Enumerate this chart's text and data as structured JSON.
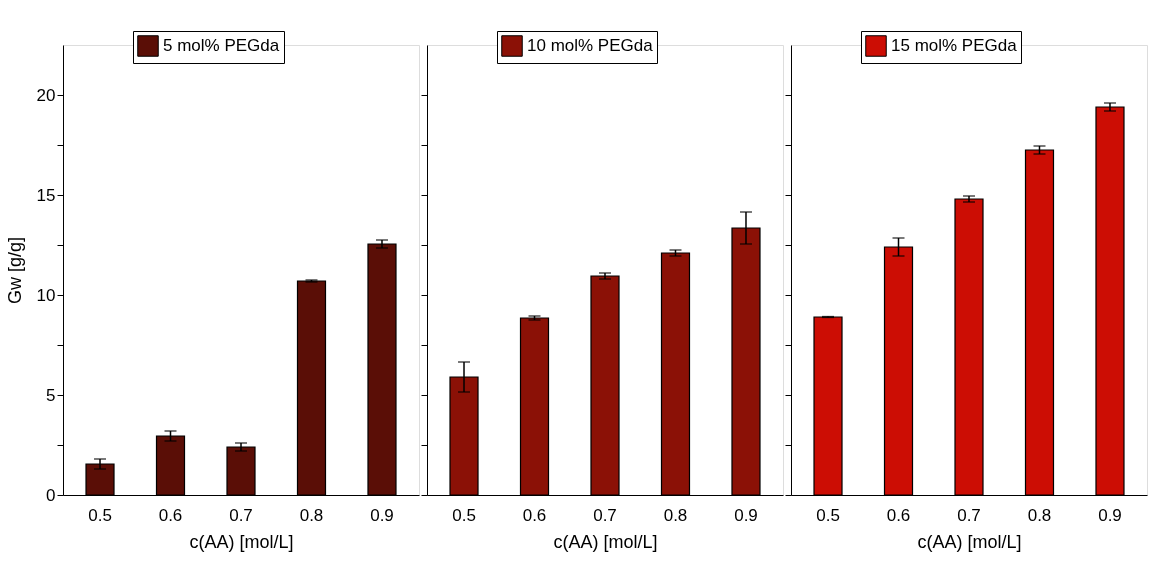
{
  "chart_data": [
    {
      "type": "bar",
      "xlabel": "c(AA) [mol/L]",
      "ylabel": "Gw [g/g]",
      "categories": [
        "0.5",
        "0.6",
        "0.7",
        "0.8",
        "0.9"
      ],
      "series": [
        {
          "name": "5 mol% PEGda",
          "color": "#5a0e06",
          "values": [
            1.55,
            2.95,
            2.4,
            10.7,
            12.55
          ],
          "errors": [
            0.25,
            0.25,
            0.2,
            0.05,
            0.2
          ]
        }
      ],
      "ylim": [
        0,
        22.5
      ],
      "yticks": [
        0,
        {
          "value": 2.5,
          "label": null
        },
        5,
        {
          "value": 7.5,
          "label": null
        },
        10,
        {
          "value": 12.5,
          "label": null
        },
        15,
        {
          "value": 17.5,
          "label": null
        },
        20
      ],
      "legend": "top",
      "grid": false
    },
    {
      "type": "bar",
      "xlabel": "c(AA) [mol/L]",
      "categories": [
        "0.5",
        "0.6",
        "0.7",
        "0.8",
        "0.9"
      ],
      "series": [
        {
          "name": "10 mol% PEGda",
          "color": "#8b1106",
          "values": [
            5.9,
            8.85,
            10.95,
            12.1,
            13.35
          ],
          "errors": [
            0.75,
            0.1,
            0.15,
            0.15,
            0.8
          ]
        }
      ],
      "ylim": [
        0,
        22.5
      ],
      "yticks": [
        0,
        {
          "value": 2.5,
          "label": null
        },
        5,
        {
          "value": 7.5,
          "label": null
        },
        10,
        {
          "value": 12.5,
          "label": null
        },
        15,
        {
          "value": 17.5,
          "label": null
        },
        20
      ],
      "tick_labels": "x",
      "legend": "top",
      "grid": false
    },
    {
      "type": "bar",
      "xlabel": "c(AA) [mol/L]",
      "categories": [
        "0.5",
        "0.6",
        "0.7",
        "0.8",
        "0.9"
      ],
      "series": [
        {
          "name": "15 mol% PEGda",
          "color": "#cc0d04",
          "values": [
            8.9,
            12.4,
            14.8,
            17.25,
            19.4
          ],
          "errors": [
            0.02,
            0.45,
            0.15,
            0.2,
            0.2
          ]
        }
      ],
      "ylim": [
        0,
        22.5
      ],
      "yticks": [
        0,
        {
          "value": 2.5,
          "label": null
        },
        5,
        {
          "value": 7.5,
          "label": null
        },
        10,
        {
          "value": 12.5,
          "label": null
        },
        15,
        {
          "value": 17.5,
          "label": null
        },
        20
      ],
      "tick_labels": "x",
      "legend": "top",
      "grid": false
    }
  ]
}
